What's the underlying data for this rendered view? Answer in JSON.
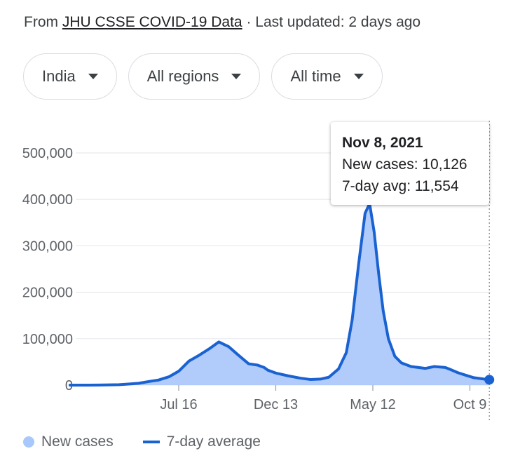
{
  "header": {
    "source_prefix": "From",
    "source_link": "JHU CSSE COVID-19 Data",
    "source_suffix": "· Last updated: 2 days ago"
  },
  "filters": [
    {
      "label": "India"
    },
    {
      "label": "All regions"
    },
    {
      "label": "All time"
    }
  ],
  "tooltip": {
    "date": "Nov 8, 2021",
    "new_cases": "New cases: 10,126",
    "avg": "7-day avg: 11,554"
  },
  "legend": {
    "new_cases": "New cases",
    "avg": "7-day average"
  },
  "colors": {
    "area": "#a8c7fa",
    "line": "#1a62d1",
    "grid": "#e8eaed"
  },
  "chart_data": {
    "type": "area",
    "title": "",
    "ylim": [
      0,
      500000
    ],
    "y_ticks": [
      {
        "value": 0,
        "label": "0"
      },
      {
        "value": 100000,
        "label": "100,000"
      },
      {
        "value": 200000,
        "label": "200,000"
      },
      {
        "value": 300000,
        "label": "300,000"
      },
      {
        "value": 400000,
        "label": "400,000"
      },
      {
        "value": 500000,
        "label": "500,000"
      }
    ],
    "x_ticks": [
      {
        "date": "2020-07-16",
        "label": "Jul 16"
      },
      {
        "date": "2020-12-13",
        "label": "Dec 13"
      },
      {
        "date": "2021-05-12",
        "label": "May 12"
      },
      {
        "date": "2021-10-09",
        "label": "Oct 9"
      }
    ],
    "x_range": [
      "2020-01-30",
      "2021-11-08"
    ],
    "highlight": {
      "date": "2021-11-08",
      "value": 11554
    },
    "series": [
      {
        "name": "7-day average",
        "points": [
          [
            "2020-01-30",
            0
          ],
          [
            "2020-03-15",
            100
          ],
          [
            "2020-04-15",
            1000
          ],
          [
            "2020-05-01",
            2500
          ],
          [
            "2020-05-15",
            4000
          ],
          [
            "2020-06-01",
            8000
          ],
          [
            "2020-06-15",
            11000
          ],
          [
            "2020-07-01",
            18000
          ],
          [
            "2020-07-16",
            30000
          ],
          [
            "2020-08-01",
            52000
          ],
          [
            "2020-08-15",
            63000
          ],
          [
            "2020-09-01",
            78000
          ],
          [
            "2020-09-16",
            93000
          ],
          [
            "2020-10-01",
            83000
          ],
          [
            "2020-10-15",
            66000
          ],
          [
            "2020-11-01",
            46000
          ],
          [
            "2020-11-15",
            43000
          ],
          [
            "2020-11-25",
            38000
          ],
          [
            "2020-12-01",
            32000
          ],
          [
            "2020-12-13",
            26000
          ],
          [
            "2021-01-01",
            20000
          ],
          [
            "2021-01-20",
            15000
          ],
          [
            "2021-02-05",
            12000
          ],
          [
            "2021-02-20",
            13000
          ],
          [
            "2021-03-05",
            17000
          ],
          [
            "2021-03-20",
            35000
          ],
          [
            "2021-04-01",
            70000
          ],
          [
            "2021-04-10",
            140000
          ],
          [
            "2021-04-20",
            260000
          ],
          [
            "2021-04-30",
            370000
          ],
          [
            "2021-05-07",
            391000
          ],
          [
            "2021-05-14",
            330000
          ],
          [
            "2021-05-21",
            240000
          ],
          [
            "2021-05-28",
            160000
          ],
          [
            "2021-06-05",
            100000
          ],
          [
            "2021-06-15",
            62000
          ],
          [
            "2021-06-25",
            48000
          ],
          [
            "2021-07-10",
            40000
          ],
          [
            "2021-08-01",
            36000
          ],
          [
            "2021-08-15",
            40000
          ],
          [
            "2021-09-01",
            38000
          ],
          [
            "2021-09-10",
            33000
          ],
          [
            "2021-09-20",
            27000
          ],
          [
            "2021-10-01",
            22000
          ],
          [
            "2021-10-15",
            16000
          ],
          [
            "2021-11-08",
            11554
          ]
        ]
      }
    ]
  }
}
